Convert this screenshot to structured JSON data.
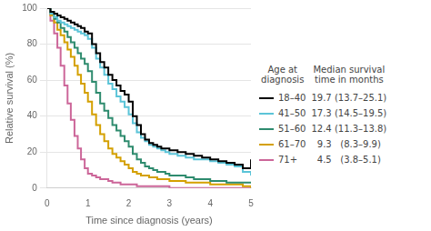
{
  "chart_data": {
    "type": "line",
    "xlabel": "Time since diagnosis (years)",
    "ylabel": "Relative survival (%)",
    "xlim": [
      0,
      5
    ],
    "ylim": [
      0,
      100
    ],
    "xticks": [
      0,
      1,
      2,
      3,
      4,
      5
    ],
    "yticks": [
      0,
      20,
      40,
      60,
      80,
      100
    ],
    "grid": "y",
    "legend": "right",
    "annotations": [
      "Age at\ndiagnosis",
      "Median survival\ntime in months"
    ],
    "series": [
      {
        "name": "18–40",
        "color": "#000000",
        "median": "19.7 (13.7–25.1)",
        "x": [
          0,
          0.08,
          0.17,
          0.25,
          0.33,
          0.42,
          0.5,
          0.58,
          0.67,
          0.75,
          0.83,
          0.92,
          1.0,
          1.1,
          1.2,
          1.3,
          1.4,
          1.5,
          1.6,
          1.7,
          1.8,
          1.9,
          2.0,
          2.1,
          2.2,
          2.3,
          2.4,
          2.5,
          2.6,
          2.7,
          2.8,
          2.9,
          3.0,
          3.2,
          3.4,
          3.6,
          3.8,
          4.0,
          4.2,
          4.4,
          4.6,
          4.8,
          5.0
        ],
        "values": [
          100,
          98,
          97,
          96,
          95,
          94,
          93,
          92,
          91,
          90,
          89,
          87,
          86,
          80,
          75,
          70,
          67,
          63,
          60,
          57,
          54,
          52,
          48,
          40,
          35,
          30,
          27,
          25,
          24,
          23,
          22,
          22,
          21,
          20,
          19,
          18,
          17,
          16,
          15,
          14,
          13,
          11,
          16
        ]
      },
      {
        "name": "41–50",
        "color": "#5bc4d8",
        "median": "17.3 (14.5–19.5)",
        "x": [
          0,
          0.08,
          0.17,
          0.25,
          0.33,
          0.42,
          0.5,
          0.58,
          0.67,
          0.75,
          0.83,
          0.92,
          1.0,
          1.1,
          1.2,
          1.3,
          1.4,
          1.5,
          1.6,
          1.7,
          1.8,
          1.9,
          2.0,
          2.1,
          2.2,
          2.3,
          2.4,
          2.5,
          2.6,
          2.7,
          2.8,
          2.9,
          3.0,
          3.2,
          3.4,
          3.6,
          3.8,
          4.0,
          4.2,
          4.4,
          4.6,
          4.8,
          5.0
        ],
        "values": [
          100,
          97,
          95,
          93,
          92,
          91,
          90,
          89,
          88,
          87,
          86,
          85,
          83,
          78,
          72,
          67,
          63,
          58,
          55,
          51,
          48,
          45,
          41,
          36,
          31,
          28,
          26,
          24,
          23,
          22,
          21,
          20,
          19,
          18,
          17,
          16,
          16,
          15,
          14,
          13,
          12,
          9,
          7
        ]
      },
      {
        "name": "51–60",
        "color": "#2e8b6e",
        "median": "12.4 (11.3–13.8)",
        "x": [
          0,
          0.08,
          0.17,
          0.25,
          0.33,
          0.42,
          0.5,
          0.58,
          0.67,
          0.75,
          0.83,
          0.92,
          1.0,
          1.1,
          1.2,
          1.3,
          1.4,
          1.5,
          1.6,
          1.7,
          1.8,
          1.9,
          2.0,
          2.1,
          2.2,
          2.3,
          2.4,
          2.5,
          2.6,
          2.7,
          2.8,
          2.9,
          3.0,
          3.2,
          3.4,
          3.6,
          3.8,
          4.0,
          4.2,
          4.4,
          4.6,
          4.8,
          5.0
        ],
        "values": [
          100,
          97,
          94,
          92,
          89,
          87,
          84,
          81,
          78,
          75,
          72,
          69,
          65,
          59,
          53,
          47,
          43,
          39,
          35,
          32,
          29,
          26,
          23,
          19,
          16,
          14,
          12,
          11,
          10,
          9,
          9,
          8,
          7,
          7,
          6,
          5,
          5,
          4,
          4,
          3,
          3,
          3,
          3
        ]
      },
      {
        "name": "61–70",
        "color": "#d4a000",
        "median": "9.3   (8.3–9.9)",
        "x": [
          0,
          0.08,
          0.17,
          0.25,
          0.33,
          0.42,
          0.5,
          0.58,
          0.67,
          0.75,
          0.83,
          0.92,
          1.0,
          1.1,
          1.2,
          1.3,
          1.4,
          1.5,
          1.6,
          1.7,
          1.8,
          1.9,
          2.0,
          2.1,
          2.2,
          2.3,
          2.4,
          2.5,
          2.6,
          2.7,
          2.8,
          2.9,
          3.0,
          3.2,
          3.4,
          3.6,
          3.8,
          4.0,
          4.2,
          4.4,
          4.6,
          4.8,
          5.0
        ],
        "values": [
          100,
          96,
          92,
          88,
          85,
          81,
          77,
          73,
          68,
          63,
          58,
          53,
          48,
          41,
          35,
          30,
          26,
          22,
          19,
          17,
          15,
          13,
          11,
          9,
          8,
          7,
          7,
          6,
          6,
          5,
          5,
          5,
          4,
          4,
          3,
          3,
          3,
          2,
          2,
          2,
          2,
          1,
          0
        ]
      },
      {
        "name": "71+",
        "color": "#cc6699",
        "median": "4.5   (3.8–5.1)",
        "x": [
          0,
          0.08,
          0.17,
          0.25,
          0.33,
          0.42,
          0.5,
          0.58,
          0.67,
          0.75,
          0.83,
          0.92,
          1.0,
          1.1,
          1.2,
          1.3,
          1.4,
          1.5,
          1.6,
          1.7,
          1.8,
          1.9,
          2.0,
          2.2,
          2.4,
          2.6,
          2.8,
          3.0,
          3.5,
          4.0,
          4.5,
          5.0
        ],
        "values": [
          100,
          93,
          86,
          78,
          68,
          57,
          47,
          38,
          29,
          22,
          16,
          11,
          8,
          7,
          6,
          5,
          5,
          4,
          3,
          3,
          2,
          2,
          2,
          1,
          1,
          1,
          1,
          0,
          0,
          0,
          0,
          0
        ]
      }
    ]
  }
}
